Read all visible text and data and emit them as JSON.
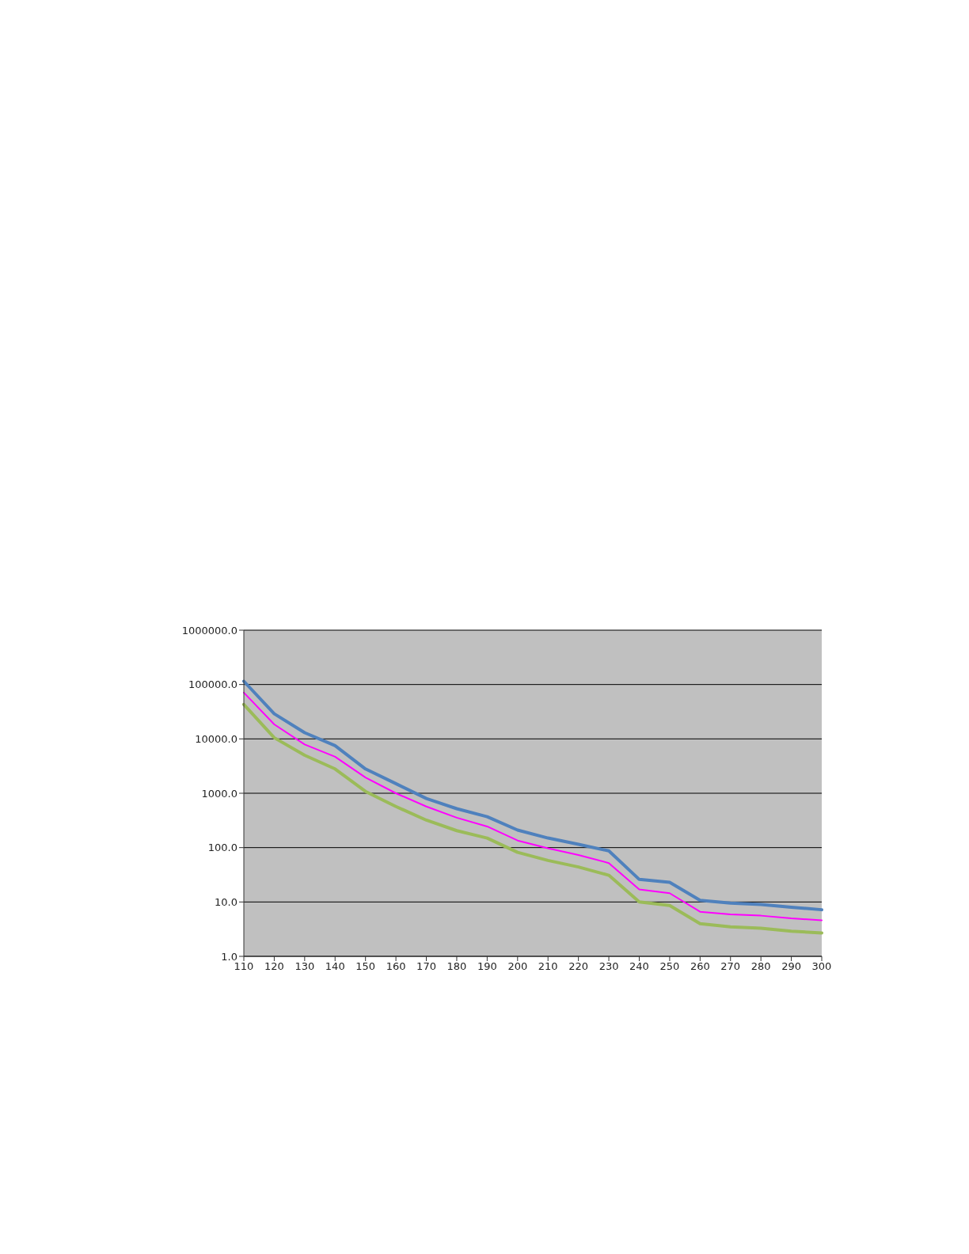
{
  "chart_data": {
    "type": "line",
    "log": "y",
    "grid": "y",
    "marker": "none",
    "line_style": "solid",
    "categories": [
      "110",
      "120",
      "130",
      "140",
      "150",
      "160",
      "170",
      "180",
      "190",
      "200",
      "210",
      "220",
      "230",
      "240",
      "250",
      "260",
      "270",
      "280",
      "290",
      "300"
    ],
    "ylim": [
      1,
      1000000
    ],
    "yticks": [
      {
        "value": 1,
        "label": "1.0"
      },
      {
        "value": 10,
        "label": "10.0"
      },
      {
        "value": 100,
        "label": "100.0"
      },
      {
        "value": 1000,
        "label": "1000.0"
      },
      {
        "value": 10000,
        "label": "10000.0"
      },
      {
        "value": 100000,
        "label": "100000.0"
      },
      {
        "value": 1000000,
        "label": "1000000.0"
      }
    ],
    "series": [
      {
        "color": "#4f81bd",
        "values": [
          115000,
          29000,
          13000,
          7500,
          2800,
          1500,
          800,
          520,
          370,
          210,
          150,
          115,
          87,
          26,
          23,
          10.7,
          9.5,
          9.0,
          8.0,
          7.2
        ]
      },
      {
        "color": "#ff00ff",
        "values": [
          71000,
          18500,
          7900,
          4700,
          1950,
          1000,
          570,
          355,
          245,
          135,
          97,
          73,
          52,
          17,
          14.5,
          6.6,
          5.9,
          5.6,
          5.0,
          4.6
        ]
      },
      {
        "color": "#9bbb59",
        "values": [
          43000,
          10500,
          5000,
          2800,
          1080,
          570,
          320,
          205,
          150,
          82,
          58,
          44,
          31,
          10,
          8.6,
          4.0,
          3.5,
          3.3,
          2.9,
          2.7
        ]
      }
    ]
  }
}
